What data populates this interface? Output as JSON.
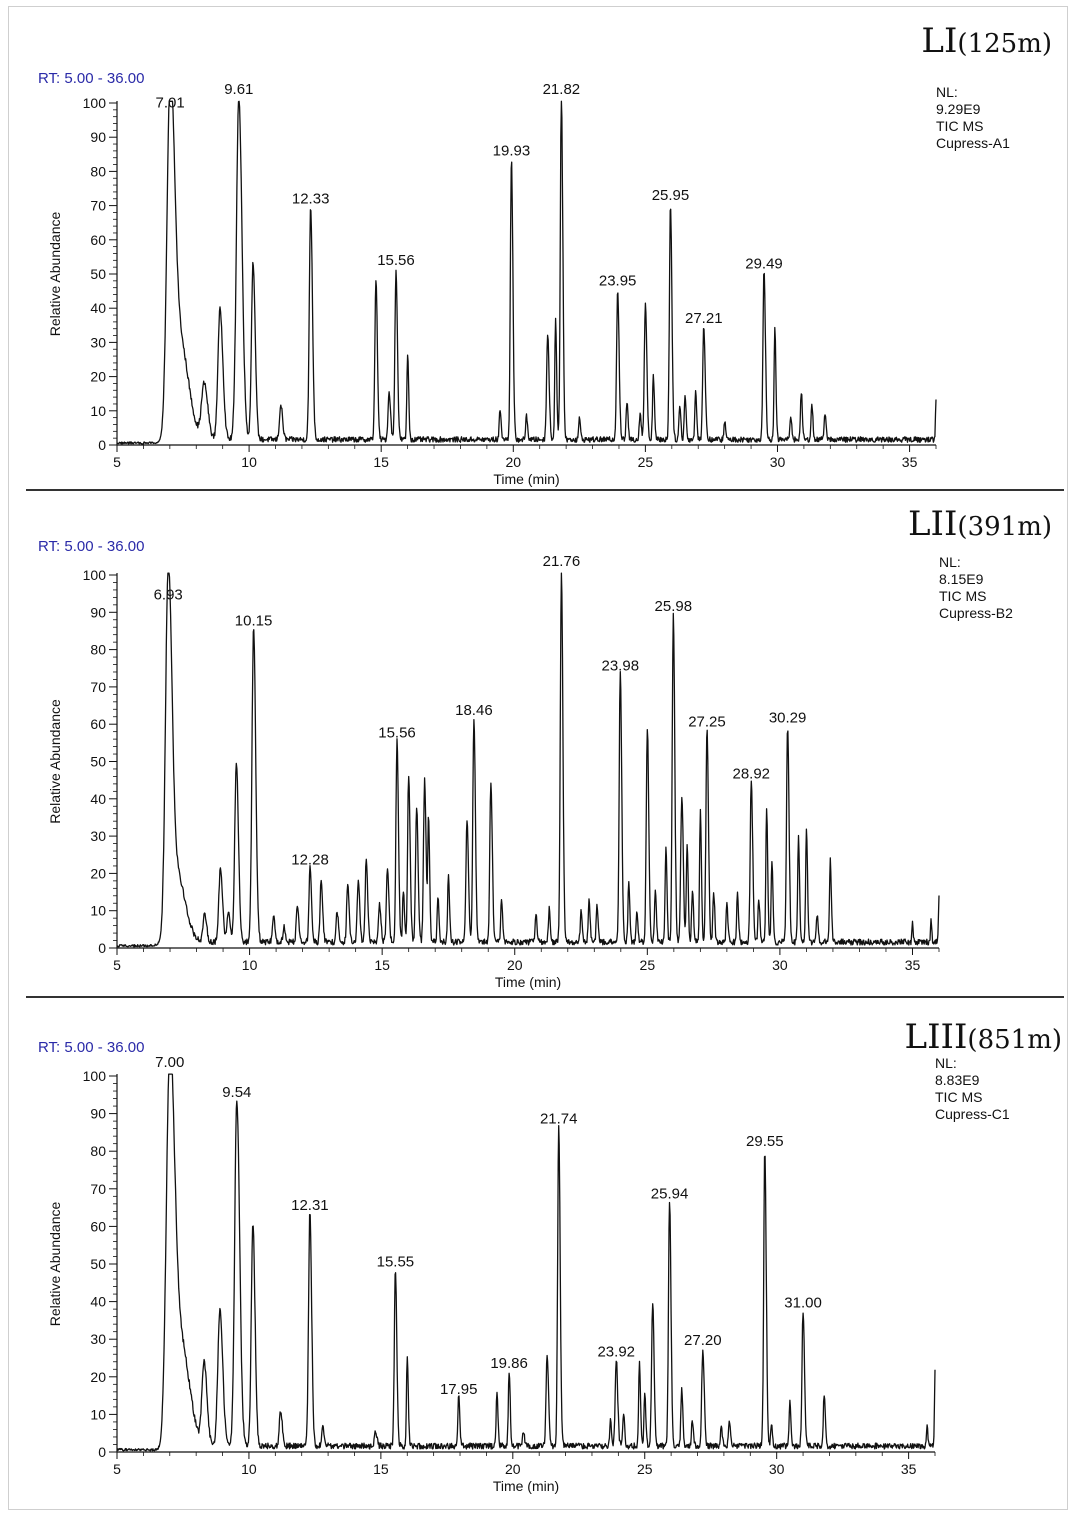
{
  "figure": {
    "border_color": "#000000",
    "line_color": "#111111",
    "rt_color": "#2a2aa8"
  },
  "chart_data": [
    {
      "type": "line",
      "panel_title_main": "LI",
      "panel_title_sub": "(125m)",
      "rt_label": "RT: 5.00 - 36.00",
      "info": [
        "NL:",
        "9.29E9",
        "TIC  MS",
        "Cupress-A1"
      ],
      "xlabel": "Time (min)",
      "ylabel": "Relative Abundance",
      "xlim": [
        5,
        36
      ],
      "ylim": [
        0,
        100
      ],
      "xticks": [
        5,
        10,
        15,
        20,
        25,
        30,
        35
      ],
      "yticks": [
        0,
        10,
        20,
        30,
        40,
        50,
        60,
        70,
        80,
        90,
        100
      ],
      "peaks": [
        {
          "rt": 7.01,
          "h": 96,
          "w": 0.12,
          "label": "7.01"
        },
        {
          "rt": 7.35,
          "h": 30,
          "w": 0.25
        },
        {
          "rt": 8.3,
          "h": 16,
          "w": 0.1
        },
        {
          "rt": 8.9,
          "h": 38,
          "w": 0.08
        },
        {
          "rt": 9.61,
          "h": 100,
          "w": 0.09,
          "label": "9.61"
        },
        {
          "rt": 10.15,
          "h": 52,
          "w": 0.06
        },
        {
          "rt": 11.2,
          "h": 10,
          "w": 0.05
        },
        {
          "rt": 12.33,
          "h": 68,
          "w": 0.05,
          "label": "12.33"
        },
        {
          "rt": 14.8,
          "h": 47,
          "w": 0.04
        },
        {
          "rt": 15.3,
          "h": 14,
          "w": 0.04
        },
        {
          "rt": 15.56,
          "h": 50,
          "w": 0.04,
          "label": "15.56"
        },
        {
          "rt": 16.0,
          "h": 25,
          "w": 0.03
        },
        {
          "rt": 19.5,
          "h": 9,
          "w": 0.03
        },
        {
          "rt": 19.93,
          "h": 82,
          "w": 0.04,
          "label": "19.93"
        },
        {
          "rt": 20.5,
          "h": 7,
          "w": 0.03
        },
        {
          "rt": 21.3,
          "h": 31,
          "w": 0.04
        },
        {
          "rt": 21.6,
          "h": 35,
          "w": 0.03
        },
        {
          "rt": 21.82,
          "h": 100,
          "w": 0.04,
          "label": "21.82"
        },
        {
          "rt": 22.5,
          "h": 6,
          "w": 0.03
        },
        {
          "rt": 23.95,
          "h": 44,
          "w": 0.04,
          "label": "23.95"
        },
        {
          "rt": 24.3,
          "h": 11,
          "w": 0.03
        },
        {
          "rt": 24.8,
          "h": 8,
          "w": 0.03
        },
        {
          "rt": 25.0,
          "h": 40,
          "w": 0.04
        },
        {
          "rt": 25.3,
          "h": 19,
          "w": 0.03
        },
        {
          "rt": 25.95,
          "h": 69,
          "w": 0.04,
          "label": "25.95"
        },
        {
          "rt": 26.3,
          "h": 10,
          "w": 0.03
        },
        {
          "rt": 26.5,
          "h": 13,
          "w": 0.03
        },
        {
          "rt": 26.9,
          "h": 14,
          "w": 0.03
        },
        {
          "rt": 27.21,
          "h": 33,
          "w": 0.04,
          "label": "27.21"
        },
        {
          "rt": 28.0,
          "h": 5,
          "w": 0.03
        },
        {
          "rt": 29.49,
          "h": 49,
          "w": 0.04,
          "label": "29.49"
        },
        {
          "rt": 29.9,
          "h": 32,
          "w": 0.03
        },
        {
          "rt": 30.5,
          "h": 7,
          "w": 0.03
        },
        {
          "rt": 30.9,
          "h": 14,
          "w": 0.03
        },
        {
          "rt": 31.3,
          "h": 10,
          "w": 0.03
        },
        {
          "rt": 31.8,
          "h": 8,
          "w": 0.03
        },
        {
          "rt": 36.0,
          "h": 12,
          "w": 0.02
        }
      ]
    },
    {
      "type": "line",
      "panel_title_main": "LII",
      "panel_title_sub": "(391m)",
      "rt_label": "RT: 5.00 - 36.00",
      "info": [
        "NL:",
        "8.15E9",
        "TIC  MS",
        "Cupress-B2"
      ],
      "xlabel": "Time (min)",
      "ylabel": "Relative Abundance",
      "xlim": [
        5,
        36
      ],
      "ylim": [
        0,
        100
      ],
      "xticks": [
        5,
        10,
        15,
        20,
        25,
        30,
        35
      ],
      "yticks": [
        0,
        10,
        20,
        30,
        40,
        50,
        60,
        70,
        80,
        90,
        100
      ],
      "peaks": [
        {
          "rt": 6.93,
          "h": 91,
          "w": 0.1,
          "label": "6.93"
        },
        {
          "rt": 7.2,
          "h": 20,
          "w": 0.25
        },
        {
          "rt": 8.3,
          "h": 7,
          "w": 0.06
        },
        {
          "rt": 8.9,
          "h": 20,
          "w": 0.06
        },
        {
          "rt": 9.2,
          "h": 8,
          "w": 0.05
        },
        {
          "rt": 9.5,
          "h": 48,
          "w": 0.06
        },
        {
          "rt": 10.15,
          "h": 84,
          "w": 0.06,
          "label": "10.15"
        },
        {
          "rt": 10.9,
          "h": 7,
          "w": 0.04
        },
        {
          "rt": 11.3,
          "h": 4,
          "w": 0.04
        },
        {
          "rt": 11.8,
          "h": 10,
          "w": 0.04
        },
        {
          "rt": 12.28,
          "h": 20,
          "w": 0.04,
          "label": "12.28"
        },
        {
          "rt": 12.7,
          "h": 17,
          "w": 0.04
        },
        {
          "rt": 13.3,
          "h": 8,
          "w": 0.04
        },
        {
          "rt": 13.7,
          "h": 15,
          "w": 0.04
        },
        {
          "rt": 14.1,
          "h": 17,
          "w": 0.04
        },
        {
          "rt": 14.4,
          "h": 22,
          "w": 0.04
        },
        {
          "rt": 14.9,
          "h": 10,
          "w": 0.04
        },
        {
          "rt": 15.2,
          "h": 20,
          "w": 0.04
        },
        {
          "rt": 15.56,
          "h": 54,
          "w": 0.04,
          "label": "15.56"
        },
        {
          "rt": 15.8,
          "h": 14,
          "w": 0.03
        },
        {
          "rt": 16.0,
          "h": 45,
          "w": 0.04
        },
        {
          "rt": 16.3,
          "h": 36,
          "w": 0.04
        },
        {
          "rt": 16.6,
          "h": 44,
          "w": 0.04
        },
        {
          "rt": 16.75,
          "h": 33,
          "w": 0.03
        },
        {
          "rt": 17.1,
          "h": 12,
          "w": 0.03
        },
        {
          "rt": 17.5,
          "h": 18,
          "w": 0.03
        },
        {
          "rt": 18.2,
          "h": 33,
          "w": 0.04
        },
        {
          "rt": 18.46,
          "h": 60,
          "w": 0.04,
          "label": "18.46"
        },
        {
          "rt": 19.1,
          "h": 43,
          "w": 0.04
        },
        {
          "rt": 19.5,
          "h": 12,
          "w": 0.03
        },
        {
          "rt": 20.8,
          "h": 8,
          "w": 0.03
        },
        {
          "rt": 21.3,
          "h": 9,
          "w": 0.03
        },
        {
          "rt": 21.76,
          "h": 100,
          "w": 0.04,
          "label": "21.76"
        },
        {
          "rt": 22.5,
          "h": 8,
          "w": 0.03
        },
        {
          "rt": 22.8,
          "h": 11,
          "w": 0.03
        },
        {
          "rt": 23.1,
          "h": 10,
          "w": 0.03
        },
        {
          "rt": 23.98,
          "h": 72,
          "w": 0.04,
          "label": "23.98"
        },
        {
          "rt": 24.3,
          "h": 16,
          "w": 0.03
        },
        {
          "rt": 24.6,
          "h": 8,
          "w": 0.03
        },
        {
          "rt": 25.0,
          "h": 57,
          "w": 0.04
        },
        {
          "rt": 25.3,
          "h": 14,
          "w": 0.03
        },
        {
          "rt": 25.7,
          "h": 26,
          "w": 0.03
        },
        {
          "rt": 25.98,
          "h": 88,
          "w": 0.04,
          "label": "25.98"
        },
        {
          "rt": 26.3,
          "h": 39,
          "w": 0.04
        },
        {
          "rt": 26.5,
          "h": 26,
          "w": 0.03
        },
        {
          "rt": 26.7,
          "h": 14,
          "w": 0.03
        },
        {
          "rt": 27.0,
          "h": 35,
          "w": 0.03
        },
        {
          "rt": 27.25,
          "h": 57,
          "w": 0.04,
          "label": "27.25"
        },
        {
          "rt": 27.5,
          "h": 14,
          "w": 0.03
        },
        {
          "rt": 28.0,
          "h": 10,
          "w": 0.03
        },
        {
          "rt": 28.4,
          "h": 13,
          "w": 0.03
        },
        {
          "rt": 28.92,
          "h": 43,
          "w": 0.04,
          "label": "28.92"
        },
        {
          "rt": 29.2,
          "h": 12,
          "w": 0.03
        },
        {
          "rt": 29.5,
          "h": 36,
          "w": 0.03
        },
        {
          "rt": 29.7,
          "h": 22,
          "w": 0.03
        },
        {
          "rt": 30.29,
          "h": 58,
          "w": 0.04,
          "label": "30.29"
        },
        {
          "rt": 30.7,
          "h": 28,
          "w": 0.03
        },
        {
          "rt": 31.0,
          "h": 31,
          "w": 0.03
        },
        {
          "rt": 31.4,
          "h": 7,
          "w": 0.03
        },
        {
          "rt": 31.9,
          "h": 22,
          "w": 0.03
        },
        {
          "rt": 35.0,
          "h": 6,
          "w": 0.02
        },
        {
          "rt": 35.7,
          "h": 6,
          "w": 0.02
        },
        {
          "rt": 36.0,
          "h": 13,
          "w": 0.02
        }
      ]
    },
    {
      "type": "line",
      "panel_title_main": "LIII",
      "panel_title_sub": "(851m)",
      "rt_label": "RT: 5.00 - 36.00",
      "info": [
        "NL:",
        "8.83E9",
        "TIC  MS",
        "Cupress-C1"
      ],
      "xlabel": "Time (min)",
      "ylabel": "Relative Abundance",
      "xlim": [
        5,
        36
      ],
      "ylim": [
        0,
        100
      ],
      "xticks": [
        5,
        10,
        15,
        20,
        25,
        30,
        35
      ],
      "yticks": [
        0,
        10,
        20,
        30,
        40,
        50,
        60,
        70,
        80,
        90,
        100
      ],
      "peaks": [
        {
          "rt": 7.0,
          "h": 100,
          "w": 0.13,
          "label": "7.00"
        },
        {
          "rt": 7.4,
          "h": 28,
          "w": 0.25
        },
        {
          "rt": 8.3,
          "h": 22,
          "w": 0.08
        },
        {
          "rt": 8.9,
          "h": 36,
          "w": 0.08
        },
        {
          "rt": 9.54,
          "h": 92,
          "w": 0.08,
          "label": "9.54"
        },
        {
          "rt": 10.15,
          "h": 59,
          "w": 0.06
        },
        {
          "rt": 11.2,
          "h": 9,
          "w": 0.05
        },
        {
          "rt": 12.31,
          "h": 62,
          "w": 0.05,
          "label": "12.31"
        },
        {
          "rt": 12.8,
          "h": 5,
          "w": 0.04
        },
        {
          "rt": 14.8,
          "h": 4,
          "w": 0.04
        },
        {
          "rt": 15.55,
          "h": 47,
          "w": 0.04,
          "label": "15.55"
        },
        {
          "rt": 16.0,
          "h": 23,
          "w": 0.03
        },
        {
          "rt": 17.95,
          "h": 13,
          "w": 0.03,
          "label": "17.95"
        },
        {
          "rt": 19.4,
          "h": 14,
          "w": 0.03
        },
        {
          "rt": 19.86,
          "h": 20,
          "w": 0.03,
          "label": "19.86"
        },
        {
          "rt": 20.4,
          "h": 4,
          "w": 0.03
        },
        {
          "rt": 21.3,
          "h": 24,
          "w": 0.04
        },
        {
          "rt": 21.74,
          "h": 85,
          "w": 0.04,
          "label": "21.74"
        },
        {
          "rt": 23.7,
          "h": 7,
          "w": 0.03
        },
        {
          "rt": 23.92,
          "h": 23,
          "w": 0.04,
          "label": "23.92"
        },
        {
          "rt": 24.2,
          "h": 9,
          "w": 0.03
        },
        {
          "rt": 24.8,
          "h": 22,
          "w": 0.03
        },
        {
          "rt": 25.0,
          "h": 14,
          "w": 0.03
        },
        {
          "rt": 25.3,
          "h": 38,
          "w": 0.04
        },
        {
          "rt": 25.94,
          "h": 65,
          "w": 0.04,
          "label": "25.94"
        },
        {
          "rt": 26.4,
          "h": 16,
          "w": 0.03
        },
        {
          "rt": 26.8,
          "h": 7,
          "w": 0.03
        },
        {
          "rt": 27.2,
          "h": 26,
          "w": 0.04,
          "label": "27.20"
        },
        {
          "rt": 27.9,
          "h": 5,
          "w": 0.03
        },
        {
          "rt": 28.2,
          "h": 7,
          "w": 0.03
        },
        {
          "rt": 29.55,
          "h": 79,
          "w": 0.04,
          "label": "29.55"
        },
        {
          "rt": 29.8,
          "h": 6,
          "w": 0.03
        },
        {
          "rt": 30.5,
          "h": 12,
          "w": 0.03
        },
        {
          "rt": 31.0,
          "h": 36,
          "w": 0.04,
          "label": "31.00"
        },
        {
          "rt": 31.8,
          "h": 14,
          "w": 0.03
        },
        {
          "rt": 35.7,
          "h": 6,
          "w": 0.02
        },
        {
          "rt": 36.0,
          "h": 21,
          "w": 0.02
        }
      ]
    }
  ]
}
